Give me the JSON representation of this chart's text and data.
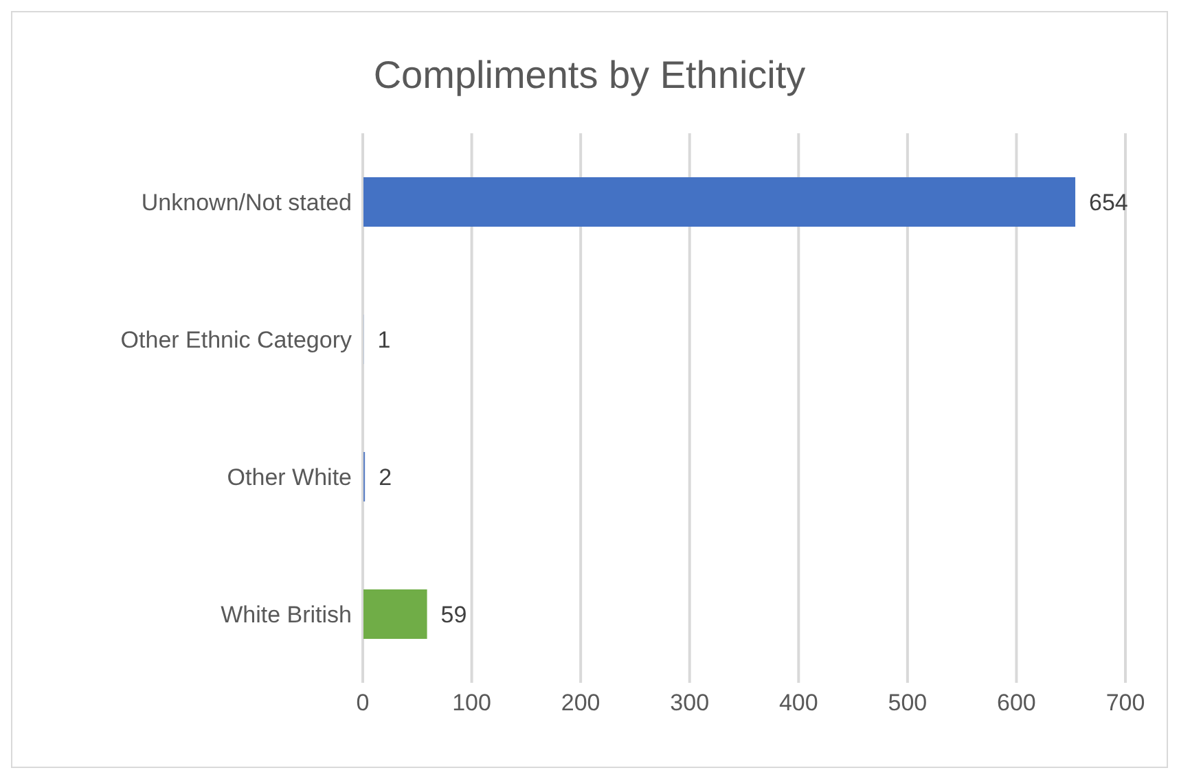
{
  "chart_data": {
    "type": "bar",
    "orientation": "horizontal",
    "title": "Compliments by Ethnicity",
    "categories": [
      "Unknown/Not stated",
      "Other Ethnic Category",
      "Other White",
      "White British"
    ],
    "values": [
      654,
      1,
      2,
      59
    ],
    "colors": [
      "#4472c4",
      "#a9b8d6",
      "#5b7fc4",
      "#70ad47"
    ],
    "xlim": [
      0,
      700
    ],
    "xticks": [
      0,
      100,
      200,
      300,
      400,
      500,
      600,
      700
    ],
    "grid": "x",
    "data_labels": true
  }
}
